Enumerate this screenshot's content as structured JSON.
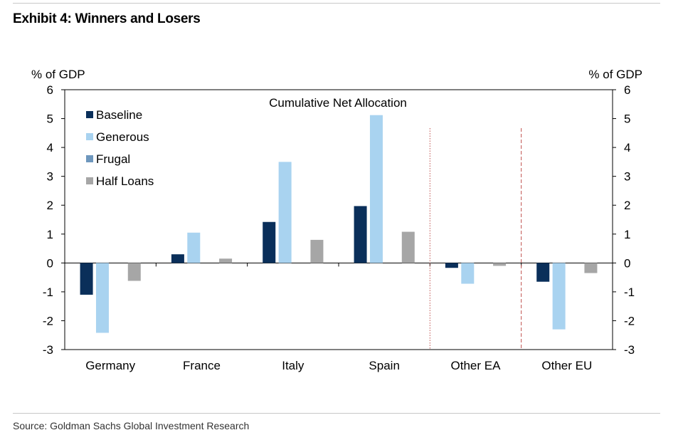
{
  "exhibit_title": "Exhibit 4: Winners and Losers",
  "source": "Source: Goldman Sachs Global Investment Research",
  "chart_data": {
    "type": "bar",
    "title": "Cumulative Net Allocation",
    "ylabel_left": "% of GDP",
    "ylabel_right": "% of GDP",
    "ylim": [
      -3,
      6
    ],
    "yticks": [
      -3,
      -2,
      -1,
      0,
      1,
      2,
      3,
      4,
      5,
      6
    ],
    "categories": [
      "Germany",
      "France",
      "Italy",
      "Spain",
      "Other EA",
      "Other EU"
    ],
    "legend_position": "top-left",
    "series": [
      {
        "name": "Baseline",
        "color": "#0a2f5a",
        "values": [
          -1.1,
          0.3,
          1.42,
          1.97,
          -0.17,
          -0.65
        ]
      },
      {
        "name": "Generous",
        "color": "#a9d3f0",
        "values": [
          -2.42,
          1.05,
          3.5,
          5.12,
          -0.72,
          -2.3
        ]
      },
      {
        "name": "Frugal",
        "color": "#6e97bd",
        "values": [
          null,
          null,
          null,
          null,
          null,
          null
        ]
      },
      {
        "name": "Half Loans",
        "color": "#a6a6a6",
        "values": [
          -0.62,
          0.15,
          0.8,
          1.08,
          -0.1,
          -0.35
        ]
      }
    ],
    "separators": [
      {
        "after_category": "Spain",
        "color": "#c0504d",
        "style": "dotted"
      },
      {
        "after_category": "Other EA",
        "color": "#c0504d",
        "style": "dashed"
      }
    ]
  }
}
